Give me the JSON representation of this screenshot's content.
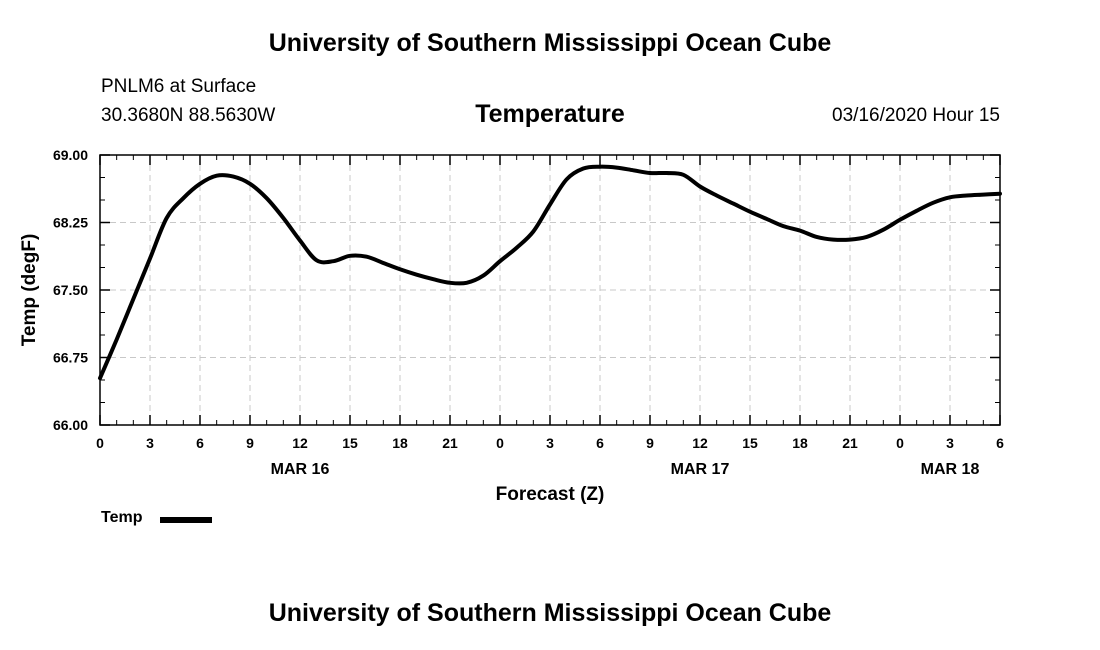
{
  "header": {
    "title": "University of Southern Mississippi Ocean Cube",
    "station": "PNLM6 at Surface",
    "coords": "30.3680N 88.5630W",
    "variable": "Temperature",
    "datetime": "03/16/2020 Hour 15"
  },
  "footer": {
    "title": "University of Southern Mississippi Ocean Cube"
  },
  "chart_data": {
    "type": "line",
    "title": "Temperature",
    "xlabel": "Forecast (Z)",
    "ylabel": "Temp (degF)",
    "xlim": [
      0,
      54
    ],
    "ylim": [
      66.0,
      69.0
    ],
    "x_tick_values": [
      0,
      3,
      6,
      9,
      12,
      15,
      18,
      21,
      24,
      27,
      30,
      33,
      36,
      39,
      42,
      45,
      48,
      51,
      54
    ],
    "x_tick_labels": [
      "0",
      "3",
      "6",
      "9",
      "12",
      "15",
      "18",
      "21",
      "0",
      "3",
      "6",
      "9",
      "12",
      "15",
      "18",
      "21",
      "0",
      "3",
      "6"
    ],
    "y_ticks": [
      "66.00",
      "66.75",
      "67.50",
      "68.25",
      "69.00"
    ],
    "date_labels": [
      {
        "x": 12,
        "label": "MAR 16"
      },
      {
        "x": 36,
        "label": "MAR 17"
      },
      {
        "x": 51,
        "label": "MAR 18"
      }
    ],
    "grid": true,
    "legend": "bottom-left",
    "series": [
      {
        "name": "Temp",
        "color": "#000000",
        "x": [
          0,
          1,
          2,
          3,
          4,
          5,
          6,
          7,
          8,
          9,
          10,
          11,
          12,
          13,
          14,
          15,
          16,
          17,
          18,
          19,
          20,
          21,
          22,
          23,
          24,
          25,
          26,
          27,
          28,
          29,
          30,
          31,
          32,
          33,
          34,
          35,
          36,
          37,
          38,
          39,
          40,
          41,
          42,
          43,
          44,
          45,
          46,
          47,
          48,
          49,
          50,
          51,
          52,
          53,
          54
        ],
        "values": [
          66.52,
          66.95,
          67.4,
          67.85,
          68.3,
          68.52,
          68.68,
          68.77,
          68.76,
          68.68,
          68.52,
          68.3,
          68.05,
          67.83,
          67.82,
          67.88,
          67.87,
          67.8,
          67.73,
          67.67,
          67.62,
          67.58,
          67.58,
          67.66,
          67.82,
          67.97,
          68.15,
          68.45,
          68.73,
          68.85,
          68.87,
          68.86,
          68.83,
          68.8,
          68.8,
          68.78,
          68.65,
          68.55,
          68.46,
          68.37,
          68.29,
          68.21,
          68.16,
          68.09,
          68.06,
          68.06,
          68.09,
          68.17,
          68.28,
          68.38,
          68.47,
          68.53,
          68.55,
          68.56,
          68.57
        ]
      }
    ]
  }
}
